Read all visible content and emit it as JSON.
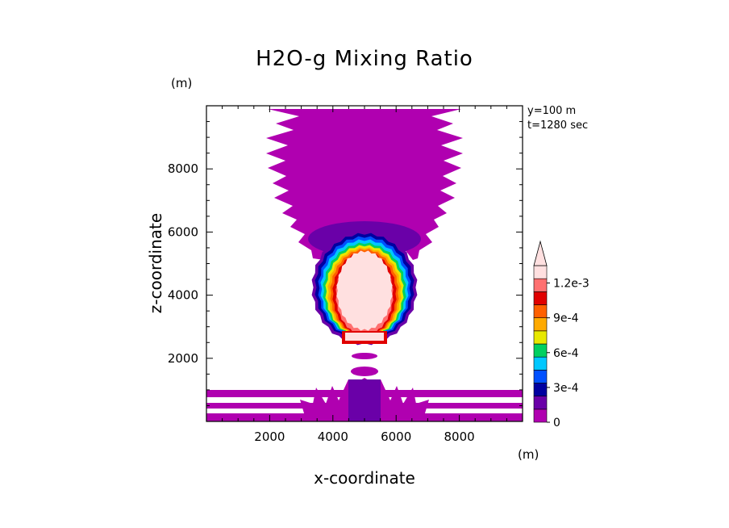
{
  "chart_data": {
    "type": "contour",
    "title": "H2O-g Mixing Ratio",
    "xlabel": "x-coordinate",
    "ylabel": "z-coordinate",
    "x_unit": "(m)",
    "z_unit": "(m)",
    "xlim": [
      0,
      10000
    ],
    "ylim": [
      0,
      10000
    ],
    "x_ticks": [
      2000,
      4000,
      6000,
      8000
    ],
    "y_ticks": [
      2000,
      4000,
      6000,
      8000
    ],
    "info": [
      "y=100 m",
      "t=1280 sec"
    ],
    "colorbar": {
      "levels": [
        0,
        0.00015,
        0.0003,
        0.00045,
        0.0006,
        0.00075,
        0.0009,
        0.00105,
        0.0012,
        0.00135
      ],
      "labels": [
        "0",
        "3e-4",
        "6e-4",
        "9e-4",
        "1.2e-3"
      ],
      "label_values": [
        0,
        0.0003,
        0.0006,
        0.0009,
        0.0012
      ],
      "colors": [
        "#b000b0",
        "#6a00a8",
        "#0000a0",
        "#0050ff",
        "#00c8ff",
        "#00d060",
        "#e8e800",
        "#ffaa00",
        "#ff6000",
        "#e00000",
        "#ff7070",
        "#ffe0e0"
      ],
      "extend": "max"
    },
    "regions": [
      {
        "name": "upper-plume",
        "value": 5e-05
      },
      {
        "name": "moist-core",
        "value": 0.0013
      },
      {
        "name": "lower-layers",
        "value": 5e-05
      }
    ]
  }
}
